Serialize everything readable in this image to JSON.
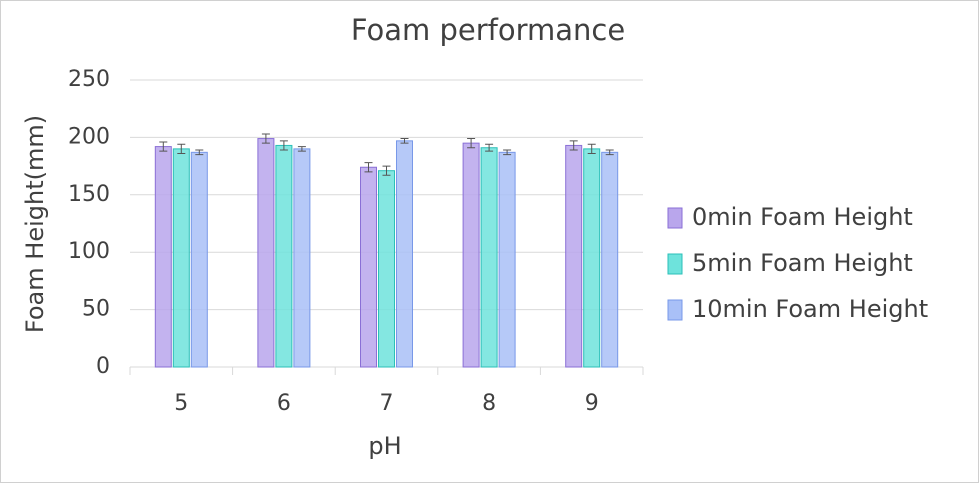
{
  "chart_data": {
    "type": "bar",
    "title": "Foam performance",
    "x_label": "pH",
    "y_label": "Foam Height(mm)",
    "categories": [
      "5",
      "6",
      "7",
      "8",
      "9"
    ],
    "series": [
      {
        "name": "0min Foam Height",
        "color": "#b9a6ec",
        "edge": "#8a6fd6",
        "values": [
          192,
          199,
          174,
          195,
          193
        ],
        "errors": [
          4,
          4,
          4,
          4,
          4
        ]
      },
      {
        "name": "5min Foam Height",
        "color": "#6ee3dc",
        "edge": "#2bbfb8",
        "values": [
          190,
          193,
          171,
          191,
          190
        ],
        "errors": [
          4,
          4,
          4,
          3,
          4
        ]
      },
      {
        "name": "10min Foam Height",
        "color": "#a9c0f7",
        "edge": "#7898e8",
        "values": [
          187,
          190,
          197,
          187,
          187
        ],
        "errors": [
          2,
          2,
          2,
          2,
          2
        ]
      }
    ],
    "ylim": [
      0,
      250
    ],
    "yticks": [
      0,
      50,
      100,
      150,
      200,
      250
    ],
    "grid": true,
    "legend": "right"
  }
}
